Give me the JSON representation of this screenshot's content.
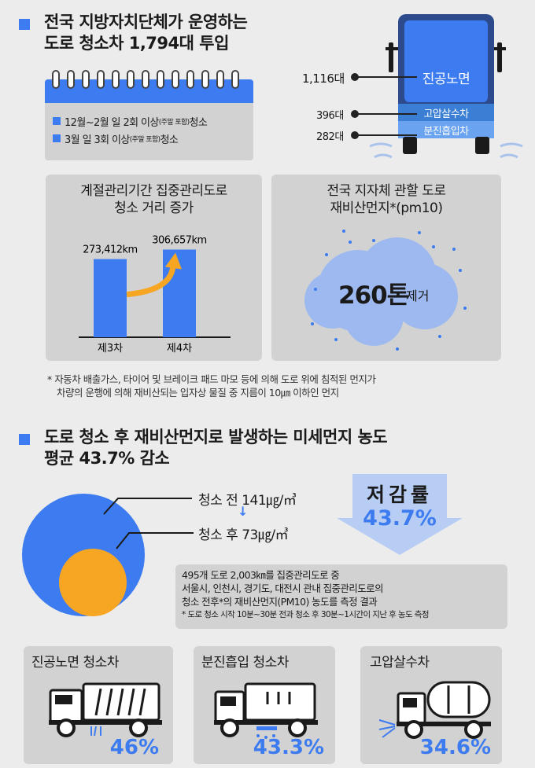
{
  "section1": {
    "title_line1": "전국 지방자치단체가 운영하는",
    "title_line2": "도로 청소차 1,794대 투입"
  },
  "calendar": {
    "item1": "12월~2월 일 2회 이상",
    "item1_note": "(주말 포함)",
    "item1_tail": " 청소",
    "item2": "3월 일 3회 이상",
    "item2_note": "(주말 포함)",
    "item2_tail": " 청소"
  },
  "truck_counts": {
    "vacuum_count": "1,116대",
    "vacuum_label": "진공노면",
    "water_count": "396대",
    "water_label": "고압살수차",
    "dust_count": "282대",
    "dust_label": "분진흡입차"
  },
  "distance_chart": {
    "title_line1": "계절관리기간 집중관리도로",
    "title_line2": "청소 거리 증가"
  },
  "chart_data": {
    "type": "bar",
    "categories": [
      "제3차",
      "제4차"
    ],
    "values": [
      273412,
      306657
    ],
    "value_labels": [
      "273,412km",
      "306,657km"
    ],
    "ylim": [
      0,
      330000
    ]
  },
  "dust_removed": {
    "title_line1": "전국 지자체 관할 도로",
    "title_line2": "재비산먼지*(pm10)",
    "amount": "260톤",
    "unit": "제거"
  },
  "footnote1": {
    "line1": "* 자동차 배출가스, 타이어 및 브레이크 패드 마모 등에 의해 도로 위에 침적된 먼지가",
    "line2": "차량의 운행에 의해 재비산되는 입자상 물질 중 지름이 10㎛ 이하인 먼지"
  },
  "section2": {
    "title_line1": "도로 청소 후 재비산먼지로 발생하는 미세먼지 농도",
    "title_line2": "평균 43.7% 감소"
  },
  "concentration": {
    "before": "청소 전 141㎍/㎥",
    "arrow": "↓",
    "after": "청소 후 73㎍/㎥",
    "reduction_label": "저감률",
    "reduction_value": "43.7%"
  },
  "measurement_note": {
    "line1": "495개 도로 2,003㎞를 집중관리도로 중",
    "line2": "서울시, 인천시, 경기도, 대전시 관내 집중관리도로의",
    "line3": "청소 전후*의 재비산먼지(PM10) 농도를 측정 결과",
    "line4": "* 도로 청소 시작 10분~30분 전과 청소 후 30분~1시간이 지난 후 농도 측정"
  },
  "truck_cards": [
    {
      "label": "진공노면 청소차",
      "percent": "46%"
    },
    {
      "label": "분진흡입 청소차",
      "percent": "43.3%"
    },
    {
      "label": "고압살수차",
      "percent": "34.6%"
    }
  ],
  "colors": {
    "accent": "#3d7bf0",
    "orange": "#f6a623",
    "panel": "#d2d2d2",
    "dark_truck": "#2c4a8c"
  }
}
